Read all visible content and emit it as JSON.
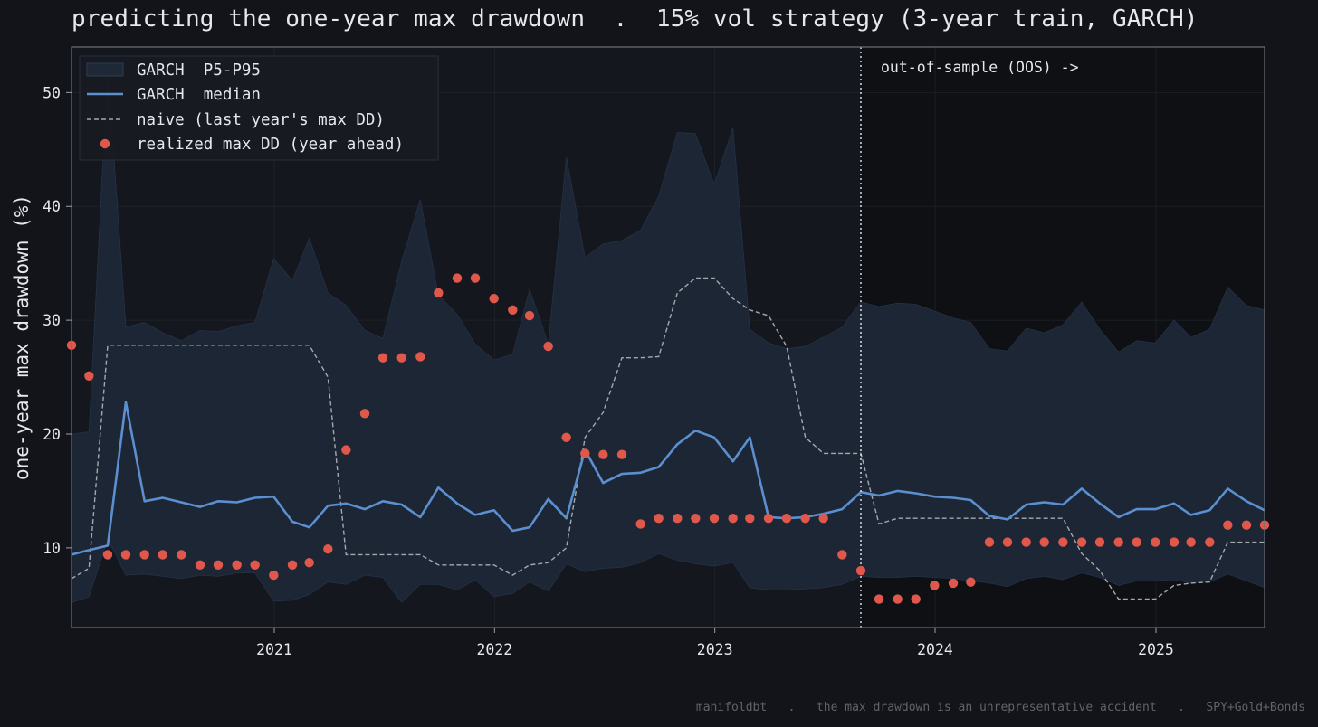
{
  "title": "predicting the one-year max drawdown  .  15% vol strategy (3-year train, GARCH)",
  "footer": "manifoldbt   .   the max drawdown is an unrepresentative accident   .   SPY+Gold+Bonds",
  "colors": {
    "background": "#121419",
    "plot_bg": "#14171d",
    "oos_bg": "#0e1014",
    "band": "#1e2837",
    "median": "#5b8fd0",
    "naive": "#a6a8ac",
    "realized": "#e0584b",
    "text": "#e6e8ec"
  },
  "chart_data": {
    "type": "line",
    "xlabel": "",
    "ylabel": "one-year max drawdown (%)",
    "xlim": [
      "2020-01-31",
      "2025-06-30"
    ],
    "ylim": [
      3,
      54
    ],
    "x_ticks": [
      "2021",
      "2022",
      "2023",
      "2024",
      "2025"
    ],
    "y_ticks": [
      10,
      20,
      30,
      40,
      50
    ],
    "grid": true,
    "legend": "top-left",
    "oos_start": "2023-08-31",
    "oos_label": "out-of-sample (OOS) ->",
    "x": [
      "2020-01-31",
      "2020-02-29",
      "2020-03-31",
      "2020-04-30",
      "2020-05-31",
      "2020-06-30",
      "2020-07-31",
      "2020-08-31",
      "2020-09-30",
      "2020-10-31",
      "2020-11-30",
      "2020-12-31",
      "2021-01-31",
      "2021-02-28",
      "2021-03-31",
      "2021-04-30",
      "2021-05-31",
      "2021-06-30",
      "2021-07-31",
      "2021-08-31",
      "2021-09-30",
      "2021-10-31",
      "2021-11-30",
      "2021-12-31",
      "2022-01-31",
      "2022-02-28",
      "2022-03-31",
      "2022-04-30",
      "2022-05-31",
      "2022-06-30",
      "2022-07-31",
      "2022-08-31",
      "2022-09-30",
      "2022-10-31",
      "2022-11-30",
      "2022-12-31",
      "2023-01-31",
      "2023-02-28",
      "2023-03-31",
      "2023-04-30",
      "2023-05-31",
      "2023-06-30",
      "2023-07-31",
      "2023-08-31",
      "2023-09-30",
      "2023-10-31",
      "2023-11-30",
      "2023-12-31",
      "2024-01-31",
      "2024-02-29",
      "2024-03-31",
      "2024-04-30",
      "2024-05-31",
      "2024-06-30",
      "2024-07-31",
      "2024-08-31",
      "2024-09-30",
      "2024-10-31",
      "2024-11-30",
      "2024-12-31",
      "2025-01-31",
      "2025-02-28",
      "2025-03-31",
      "2025-04-30",
      "2025-05-31",
      "2025-06-30"
    ],
    "series": [
      {
        "name": "GARCH  P5-P95",
        "type": "band",
        "p5": [
          5.2,
          5.7,
          10.8,
          7.6,
          7.7,
          7.5,
          7.3,
          7.6,
          7.5,
          7.8,
          7.8,
          5.3,
          5.4,
          5.9,
          7.0,
          6.8,
          7.6,
          7.4,
          5.2,
          6.8,
          6.8,
          6.3,
          7.2,
          5.7,
          6.0,
          7.0,
          6.2,
          8.6,
          7.9,
          8.2,
          8.3,
          8.7,
          9.5,
          8.9,
          8.6,
          8.4,
          8.7,
          6.5,
          6.3,
          6.3,
          6.4,
          6.5,
          6.8,
          7.5,
          7.4,
          7.4,
          7.5,
          7.4,
          7.3,
          7.1,
          6.9,
          6.6,
          7.3,
          7.5,
          7.2,
          7.8,
          7.4,
          6.7,
          7.1,
          7.1,
          7.2,
          6.9,
          7.0,
          7.7,
          7.1,
          6.5
        ],
        "p95": [
          20.0,
          20.2,
          52.2,
          29.4,
          29.8,
          28.9,
          28.2,
          29.1,
          29.0,
          29.5,
          29.8,
          35.4,
          33.5,
          37.2,
          32.4,
          31.3,
          29.1,
          28.4,
          35.2,
          40.6,
          32.2,
          30.5,
          27.9,
          26.5,
          27.0,
          32.7,
          27.9,
          44.3,
          35.5,
          36.7,
          37.0,
          37.9,
          40.9,
          46.5,
          46.4,
          41.9,
          46.9,
          29.2,
          28.0,
          27.5,
          27.7,
          28.5,
          29.4,
          31.6,
          31.2,
          31.5,
          31.4,
          30.8,
          30.2,
          29.8,
          27.5,
          27.3,
          29.3,
          28.9,
          29.6,
          31.6,
          29.2,
          27.2,
          28.2,
          28.0,
          30.0,
          28.5,
          29.2,
          32.9,
          31.3,
          30.9
        ]
      },
      {
        "name": "GARCH  median",
        "type": "line",
        "values": [
          9.4,
          9.8,
          10.2,
          22.8,
          14.1,
          14.4,
          14.0,
          13.6,
          14.1,
          14.0,
          14.4,
          14.5,
          12.3,
          11.8,
          13.7,
          13.9,
          13.4,
          14.1,
          13.8,
          12.7,
          15.3,
          13.9,
          12.9,
          13.3,
          11.5,
          11.8,
          14.3,
          12.6,
          18.6,
          15.7,
          16.5,
          16.6,
          17.1,
          19.1,
          20.3,
          19.7,
          17.6,
          19.7,
          12.7,
          12.6,
          12.7,
          13.0,
          13.4,
          14.9,
          14.6,
          15.0,
          14.8,
          14.5,
          14.4,
          14.2,
          12.8,
          12.5,
          13.8,
          14.0,
          13.8,
          15.2,
          13.9,
          12.7,
          13.4,
          13.4,
          13.9,
          12.9,
          13.3,
          15.2,
          14.1,
          13.3
        ]
      },
      {
        "name": "naive (last year's max DD)",
        "type": "dashed",
        "values": [
          7.3,
          8.2,
          27.8,
          27.8,
          27.8,
          27.8,
          27.8,
          27.8,
          27.8,
          27.8,
          27.8,
          27.8,
          27.8,
          27.8,
          25.0,
          9.4,
          9.4,
          9.4,
          9.4,
          9.4,
          8.5,
          8.5,
          8.5,
          8.5,
          7.6,
          8.5,
          8.7,
          10.0,
          19.7,
          21.9,
          26.7,
          26.7,
          26.8,
          32.4,
          33.7,
          33.7,
          31.9,
          30.9,
          30.4,
          27.7,
          19.7,
          18.3,
          18.3,
          18.3,
          12.1,
          12.6,
          12.6,
          12.6,
          12.6,
          12.6,
          12.6,
          12.6,
          12.6,
          12.6,
          12.6,
          9.5,
          8.0,
          5.5,
          5.5,
          5.5,
          6.7,
          6.9,
          7.0,
          10.5,
          10.5,
          10.5
        ]
      },
      {
        "name": "realized max DD (year ahead)",
        "type": "scatter",
        "values": [
          27.8,
          25.1,
          9.4,
          9.4,
          9.4,
          9.4,
          9.4,
          8.5,
          8.5,
          8.5,
          8.5,
          7.6,
          8.5,
          8.7,
          9.9,
          18.6,
          21.8,
          26.7,
          26.7,
          26.8,
          32.4,
          33.7,
          33.7,
          31.9,
          30.9,
          30.4,
          27.7,
          19.7,
          18.3,
          18.2,
          18.2,
          12.1,
          12.6,
          12.6,
          12.6,
          12.6,
          12.6,
          12.6,
          12.6,
          12.6,
          12.6,
          12.6,
          9.4,
          8.0,
          5.5,
          5.5,
          5.5,
          6.7,
          6.9,
          7.0,
          10.5,
          10.5,
          10.5,
          10.5,
          10.5,
          10.5,
          10.5,
          10.5,
          10.5,
          10.5,
          10.5,
          10.5,
          10.5,
          12.0,
          12.0,
          12.0
        ]
      }
    ]
  }
}
